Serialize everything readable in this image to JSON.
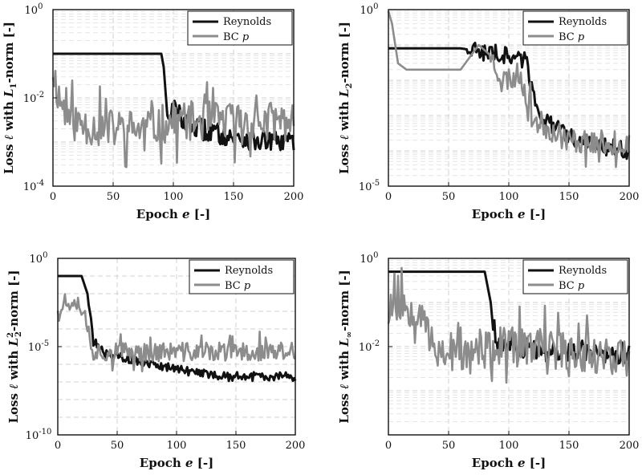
{
  "colors": {
    "reynolds": "#111111",
    "bc": "#8c8c8c",
    "grid": "#d0d0d0",
    "axis": "#111111"
  },
  "legend": {
    "reynolds": "Reynolds",
    "bc_prefix": "BC ",
    "bc_var": "p",
    "placement": "top-right"
  },
  "xaxis": {
    "prefix": "Epoch ",
    "var": "e",
    "suffix": " [-]"
  },
  "chart_data": [
    {
      "id": "p1",
      "type": "line",
      "yscale": "log",
      "xlim": [
        0,
        200
      ],
      "ylim": [
        0.0001,
        1
      ],
      "xticks": [
        0,
        50,
        100,
        150,
        200
      ],
      "yticks": [
        {
          "v": 0.0001,
          "base": "10",
          "exp": "-4"
        },
        {
          "v": 0.01,
          "base": "10",
          "exp": "-2"
        },
        {
          "v": 1,
          "base": "10",
          "exp": "0"
        }
      ],
      "ylabel": {
        "pre": "Loss ",
        "ell": "ℓ",
        "mid": " with ",
        "sym": "L",
        "sub": "1",
        "sup": "",
        "post": "-norm [-]"
      },
      "reynolds": [
        [
          0,
          0.1
        ],
        [
          90,
          0.1
        ],
        [
          92,
          0.05
        ],
        [
          95,
          0.004
        ],
        [
          100,
          0.006
        ],
        [
          110,
          0.003
        ],
        [
          120,
          0.002
        ],
        [
          140,
          0.0015
        ],
        [
          160,
          0.0012
        ],
        [
          180,
          0.001
        ],
        [
          200,
          0.001
        ]
      ],
      "bc_anchors": [
        [
          0,
          0.05
        ],
        [
          5,
          0.01
        ],
        [
          15,
          0.003
        ],
        [
          40,
          0.002
        ],
        [
          80,
          0.002
        ],
        [
          100,
          0.003
        ],
        [
          130,
          0.003
        ],
        [
          160,
          0.003
        ],
        [
          200,
          0.003
        ]
      ],
      "bc_noise": 0.45,
      "seed": 11
    },
    {
      "id": "p2",
      "type": "line",
      "yscale": "log",
      "xlim": [
        0,
        200
      ],
      "ylim": [
        1e-05,
        1
      ],
      "xticks": [
        0,
        50,
        100,
        150,
        200
      ],
      "yticks": [
        {
          "v": 1e-05,
          "base": "10",
          "exp": "-5"
        },
        {
          "v": 1,
          "base": "10",
          "exp": "0"
        }
      ],
      "ylabel": {
        "pre": "Loss ",
        "ell": "ℓ",
        "mid": " with ",
        "sym": "L",
        "sub": "2",
        "sup": "",
        "post": "-norm [-]"
      },
      "reynolds": [
        [
          0,
          0.08
        ],
        [
          60,
          0.08
        ],
        [
          100,
          0.05
        ],
        [
          115,
          0.035
        ],
        [
          120,
          0.004
        ],
        [
          130,
          0.0007
        ],
        [
          150,
          0.00025
        ],
        [
          170,
          0.00015
        ],
        [
          200,
          0.0001
        ]
      ],
      "bc_anchors": [
        [
          0,
          0.9
        ],
        [
          3,
          0.4
        ],
        [
          8,
          0.03
        ],
        [
          15,
          0.02
        ],
        [
          60,
          0.02
        ],
        [
          75,
          0.1
        ],
        [
          85,
          0.05
        ],
        [
          95,
          0.01
        ],
        [
          110,
          0.015
        ],
        [
          120,
          0.0008
        ],
        [
          150,
          0.0002
        ],
        [
          200,
          0.00015
        ]
      ],
      "bc_noise": 0.35,
      "bc_noise_start": 85,
      "seed": 23
    },
    {
      "id": "p3",
      "type": "line",
      "yscale": "log",
      "xlim": [
        0,
        200
      ],
      "ylim": [
        1e-10,
        1
      ],
      "xticks": [
        0,
        50,
        100,
        150,
        200
      ],
      "yticks": [
        {
          "v": 1e-10,
          "base": "10",
          "exp": "-10"
        },
        {
          "v": 1e-05,
          "base": "10",
          "exp": "-5"
        },
        {
          "v": 1,
          "base": "10",
          "exp": "0"
        }
      ],
      "ylabel": {
        "pre": "Loss ",
        "ell": "ℓ",
        "mid": " with ",
        "sym": "L",
        "sub": "2",
        "sup": "2",
        "post": "-norm [-]"
      },
      "reynolds": [
        [
          0,
          0.1
        ],
        [
          20,
          0.1
        ],
        [
          25,
          0.01
        ],
        [
          30,
          2e-05
        ],
        [
          40,
          4e-06
        ],
        [
          60,
          2e-06
        ],
        [
          100,
          5e-07
        ],
        [
          140,
          2e-07
        ],
        [
          170,
          2e-07
        ],
        [
          200,
          2e-07
        ]
      ],
      "bc_anchors": [
        [
          0,
          0.002
        ],
        [
          5,
          0.002
        ],
        [
          15,
          0.006
        ],
        [
          22,
          0.001
        ],
        [
          30,
          5e-06
        ],
        [
          60,
          5e-06
        ],
        [
          100,
          5e-06
        ],
        [
          150,
          5e-06
        ],
        [
          200,
          5e-06
        ]
      ],
      "bc_noise": 0.55,
      "seed": 37
    },
    {
      "id": "p4",
      "type": "line",
      "yscale": "log",
      "xlim": [
        0,
        200
      ],
      "ylim": [
        0.0001,
        1
      ],
      "xticks": [
        0,
        50,
        100,
        150,
        200
      ],
      "yticks": [
        {
          "v": 0.01,
          "base": "10",
          "exp": "-2"
        },
        {
          "v": 1,
          "base": "10",
          "exp": "0"
        }
      ],
      "ylabel": {
        "pre": "Loss ",
        "ell": "ℓ",
        "mid": " with ",
        "sym": "L",
        "sub": "∞",
        "sup": "",
        "post": "-norm [-]"
      },
      "reynolds": [
        [
          0,
          0.5
        ],
        [
          80,
          0.5
        ],
        [
          85,
          0.1
        ],
        [
          90,
          0.01
        ],
        [
          100,
          0.01
        ],
        [
          130,
          0.008
        ],
        [
          160,
          0.008
        ],
        [
          200,
          0.007
        ]
      ],
      "bc_anchors": [
        [
          0,
          0.1
        ],
        [
          20,
          0.08
        ],
        [
          30,
          0.07
        ],
        [
          35,
          0.01
        ],
        [
          60,
          0.006
        ],
        [
          100,
          0.01
        ],
        [
          150,
          0.008
        ],
        [
          200,
          0.006
        ]
      ],
      "bc_noise": 0.45,
      "seed": 53
    }
  ]
}
